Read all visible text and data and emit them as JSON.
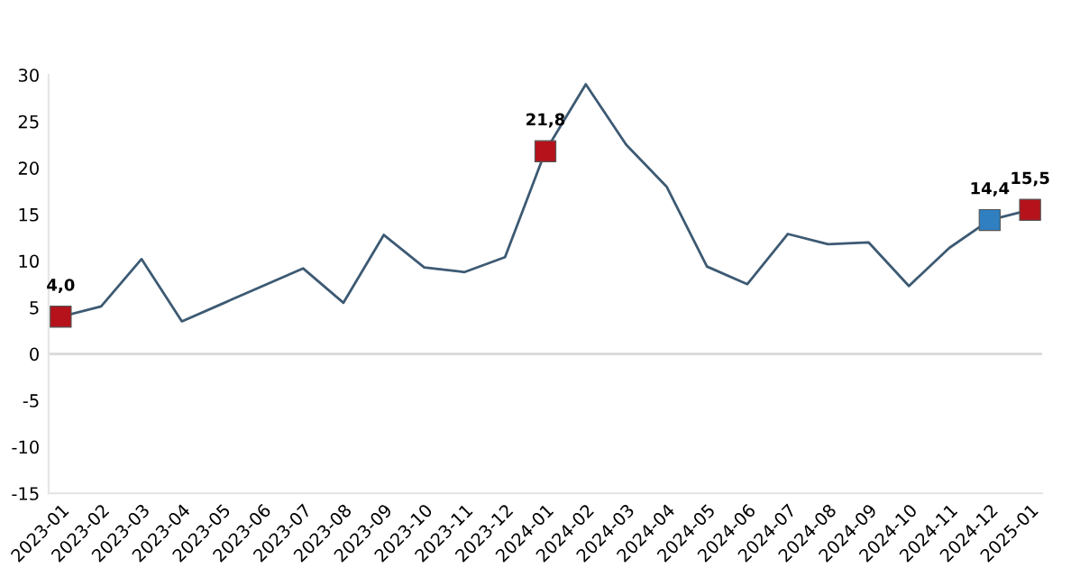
{
  "chart_data": {
    "type": "line",
    "categories": [
      "2023-01",
      "2023-02",
      "2023-03",
      "2023-04",
      "2023-05",
      "2023-06",
      "2023-07",
      "2023-08",
      "2023-09",
      "2023-10",
      "2023-11",
      "2023-12",
      "2024-01",
      "2024-02",
      "2024-03",
      "2024-04",
      "2024-05",
      "2024-06",
      "2024-07",
      "2024-08",
      "2024-09",
      "2024-10",
      "2024-11",
      "2024-12",
      "2025-01"
    ],
    "series": [
      {
        "color": "#3d5a73",
        "marker": "none",
        "values": [
          4.0,
          5.1,
          10.2,
          3.5,
          5.4,
          7.3,
          9.2,
          5.5,
          12.8,
          9.3,
          8.8,
          10.4,
          21.8,
          29.0,
          22.5,
          18.0,
          9.4,
          7.5,
          12.9,
          11.8,
          12.0,
          7.3,
          11.4,
          14.4,
          15.5
        ]
      },
      {
        "type": "scatter",
        "marker": "square",
        "values": [
          4.0,
          null,
          null,
          null,
          null,
          null,
          null,
          null,
          null,
          null,
          null,
          null,
          21.8,
          null,
          null,
          null,
          null,
          null,
          null,
          null,
          null,
          null,
          null,
          14.4,
          15.5
        ],
        "colors": [
          "#b5121b",
          null,
          null,
          null,
          null,
          null,
          null,
          null,
          null,
          null,
          null,
          null,
          "#b5121b",
          null,
          null,
          null,
          null,
          null,
          null,
          null,
          null,
          null,
          null,
          "#2f7fc1",
          "#b5121b"
        ],
        "value_labels": [
          "4,0",
          null,
          null,
          null,
          null,
          null,
          null,
          null,
          null,
          null,
          null,
          null,
          "21,8",
          null,
          null,
          null,
          null,
          null,
          null,
          null,
          null,
          null,
          null,
          "14,4",
          "15,5"
        ]
      }
    ],
    "ylim": [
      -15,
      30
    ],
    "yticks": [
      -15,
      -10,
      -5,
      0,
      5,
      10,
      15,
      20,
      25,
      30
    ],
    "ref_lines": [
      {
        "axis": "y",
        "value": 0,
        "color": "#d9d9d9"
      }
    ],
    "grid": false,
    "legend": false
  }
}
